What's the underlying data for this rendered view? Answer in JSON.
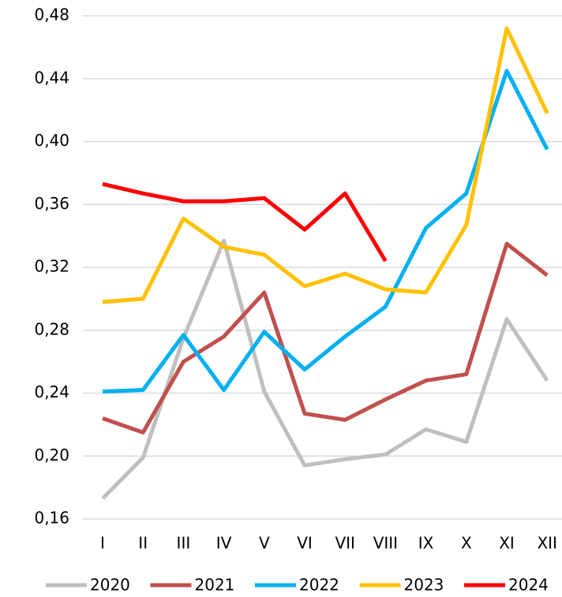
{
  "chart_data": {
    "type": "line",
    "categories": [
      "I",
      "II",
      "III",
      "IV",
      "V",
      "VI",
      "VII",
      "VIII",
      "IX",
      "X",
      "XI",
      "XII"
    ],
    "series": [
      {
        "name": "2020",
        "color": "#bfbfbf",
        "values": [
          0.173,
          0.199,
          0.275,
          0.337,
          0.241,
          0.194,
          0.198,
          0.201,
          0.217,
          0.209,
          0.287,
          0.248
        ]
      },
      {
        "name": "2021",
        "color": "#c0504d",
        "values": [
          0.224,
          0.215,
          0.26,
          0.276,
          0.304,
          0.227,
          0.223,
          0.236,
          0.248,
          0.252,
          0.335,
          0.315
        ]
      },
      {
        "name": "2022",
        "color": "#00b0f0",
        "values": [
          0.241,
          0.242,
          0.277,
          0.242,
          0.279,
          0.255,
          0.276,
          0.295,
          0.345,
          0.367,
          0.445,
          0.395
        ]
      },
      {
        "name": "2023",
        "color": "#ffc000",
        "values": [
          0.298,
          0.3,
          0.351,
          0.333,
          0.328,
          0.308,
          0.316,
          0.306,
          0.304,
          0.347,
          0.472,
          0.418
        ]
      },
      {
        "name": "2024",
        "color": "#ff0000",
        "values": [
          0.373,
          0.367,
          0.362,
          0.362,
          0.364,
          0.344,
          0.367,
          0.324,
          null,
          null,
          null,
          null
        ]
      }
    ],
    "ylim": [
      0.16,
      0.48
    ],
    "yticks": [
      {
        "value": 0.16,
        "label": "0,16"
      },
      {
        "value": 0.2,
        "label": "0,20"
      },
      {
        "value": 0.24,
        "label": "0,24"
      },
      {
        "value": 0.28,
        "label": "0,28"
      },
      {
        "value": 0.32,
        "label": "0,32"
      },
      {
        "value": 0.36,
        "label": "0,36"
      },
      {
        "value": 0.4,
        "label": "0,40"
      },
      {
        "value": 0.44,
        "label": "0,44"
      },
      {
        "value": 0.48,
        "label": "0,48"
      }
    ],
    "grid": true,
    "legend": "bottom"
  }
}
